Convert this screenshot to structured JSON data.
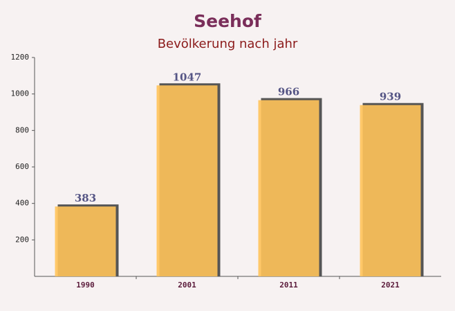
{
  "chart_data": {
    "type": "bar",
    "title": "Seehof",
    "subtitle": "Bevölkerung nach jahr",
    "categories": [
      "1990",
      "2001",
      "2011",
      "2021"
    ],
    "values": [
      383,
      1047,
      966,
      939
    ],
    "color": "#ffc35a",
    "ylim": [
      0,
      1200
    ],
    "yticks": [
      200,
      400,
      600,
      800,
      1000,
      1200
    ]
  }
}
